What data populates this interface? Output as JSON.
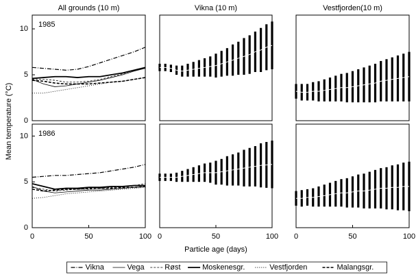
{
  "chart_data": [
    {
      "type": "line",
      "title": "All grounds (10 m)",
      "annotation": "1985",
      "xlim": [
        0,
        100
      ],
      "ylim": [
        0,
        11.5
      ],
      "yticks": [
        0,
        5,
        10
      ],
      "x": [
        0,
        10,
        20,
        30,
        40,
        50,
        60,
        70,
        80,
        90,
        100
      ],
      "series": [
        {
          "name": "Vikna",
          "color": "#000000",
          "style": "dashdot",
          "width": 1.2,
          "values": [
            5.8,
            5.7,
            5.6,
            5.5,
            5.6,
            5.9,
            6.3,
            6.7,
            7.1,
            7.5,
            8.0
          ]
        },
        {
          "name": "Vega",
          "color": "#000000",
          "style": "solid",
          "width": 0.8,
          "values": [
            4.5,
            4.0,
            3.7,
            3.8,
            4.0,
            4.2,
            4.4,
            4.7,
            5.0,
            5.4,
            5.7
          ]
        },
        {
          "name": "Røst",
          "color": "#000000",
          "style": "dashed",
          "width": 0.8,
          "values": [
            4.5,
            4.5,
            4.4,
            4.2,
            4.2,
            4.3,
            4.5,
            4.8,
            5.1,
            5.5,
            5.8
          ]
        },
        {
          "name": "Moskenesgr.",
          "color": "#000000",
          "style": "solid",
          "width": 1.8,
          "values": [
            4.6,
            4.7,
            4.8,
            4.8,
            4.7,
            4.8,
            4.8,
            5.0,
            5.2,
            5.5,
            5.8
          ]
        },
        {
          "name": "Vestfjorden",
          "color": "#000000",
          "style": "dotted",
          "width": 0.9,
          "values": [
            3.0,
            3.0,
            3.2,
            3.4,
            3.6,
            3.8,
            4.0,
            4.2,
            4.3,
            4.5,
            4.7
          ]
        },
        {
          "name": "Malangsgr.",
          "color": "#000000",
          "style": "longdash",
          "width": 1.6,
          "values": [
            4.4,
            4.3,
            4.1,
            4.0,
            4.0,
            4.0,
            4.1,
            4.2,
            4.3,
            4.5,
            4.7
          ]
        }
      ]
    },
    {
      "type": "errorbar",
      "title": "Vikna (10 m)",
      "xlim": [
        0,
        100
      ],
      "ylim": [
        0,
        11.5
      ],
      "x": [
        0,
        5,
        10,
        15,
        20,
        25,
        30,
        35,
        40,
        45,
        50,
        55,
        60,
        65,
        70,
        75,
        80,
        85,
        90,
        95,
        100
      ],
      "series": [
        {
          "color": "#000000",
          "values": [
            5.8,
            5.8,
            5.7,
            5.5,
            5.4,
            5.5,
            5.6,
            5.7,
            5.8,
            5.9,
            6.0,
            6.2,
            6.4,
            6.6,
            6.8,
            7.0,
            7.2,
            7.5,
            7.7,
            8.0,
            8.2
          ],
          "errors": [
            0.4,
            0.4,
            0.4,
            0.5,
            0.6,
            0.7,
            0.8,
            0.9,
            1.0,
            1.1,
            1.3,
            1.4,
            1.5,
            1.7,
            1.8,
            2.0,
            2.1,
            2.2,
            2.4,
            2.5,
            2.6
          ]
        }
      ]
    },
    {
      "type": "errorbar",
      "title": "Vestfjorden(10 m)",
      "xlim": [
        0,
        100
      ],
      "ylim": [
        0,
        11.5
      ],
      "x": [
        0,
        5,
        10,
        15,
        20,
        25,
        30,
        35,
        40,
        45,
        50,
        55,
        60,
        65,
        70,
        75,
        80,
        85,
        90,
        95,
        100
      ],
      "series": [
        {
          "color": "#000000",
          "values": [
            3.2,
            3.1,
            3.1,
            3.2,
            3.2,
            3.3,
            3.4,
            3.5,
            3.6,
            3.6,
            3.7,
            3.8,
            3.9,
            4.0,
            4.1,
            4.3,
            4.4,
            4.5,
            4.6,
            4.7,
            4.8
          ],
          "errors": [
            0.8,
            0.9,
            0.9,
            1.0,
            1.1,
            1.2,
            1.3,
            1.4,
            1.5,
            1.6,
            1.7,
            1.8,
            1.9,
            2.0,
            2.1,
            2.2,
            2.3,
            2.4,
            2.5,
            2.6,
            2.7
          ]
        }
      ]
    },
    {
      "type": "line",
      "annotation": "1986",
      "y_label": "Mean temperature (°C)",
      "xlim": [
        0,
        100
      ],
      "ylim": [
        0,
        11.3
      ],
      "yticks": [
        0,
        5,
        10
      ],
      "xticks": [
        0,
        50,
        100
      ],
      "x": [
        0,
        10,
        20,
        30,
        40,
        50,
        60,
        70,
        80,
        90,
        100
      ],
      "series": [
        {
          "name": "Vikna",
          "color": "#000000",
          "style": "dashdot",
          "width": 1.2,
          "values": [
            5.5,
            5.6,
            5.7,
            5.7,
            5.8,
            5.9,
            6.0,
            6.2,
            6.4,
            6.6,
            6.9
          ]
        },
        {
          "name": "Vega",
          "color": "#000000",
          "style": "solid",
          "width": 0.8,
          "values": [
            4.5,
            4.0,
            3.8,
            3.9,
            4.0,
            4.1,
            4.1,
            4.2,
            4.3,
            4.4,
            4.5
          ]
        },
        {
          "name": "Røst",
          "color": "#000000",
          "style": "dashed",
          "width": 0.8,
          "values": [
            4.4,
            4.2,
            4.0,
            4.1,
            4.2,
            4.2,
            4.3,
            4.4,
            4.5,
            4.6,
            4.8
          ]
        },
        {
          "name": "Moskenesgr.",
          "color": "#000000",
          "style": "solid",
          "width": 1.8,
          "values": [
            4.8,
            4.5,
            4.2,
            4.3,
            4.3,
            4.4,
            4.4,
            4.5,
            4.5,
            4.6,
            4.6
          ]
        },
        {
          "name": "Vestfjorden",
          "color": "#000000",
          "style": "dotted",
          "width": 0.9,
          "values": [
            3.2,
            3.3,
            3.5,
            3.7,
            3.8,
            3.9,
            4.0,
            4.1,
            4.2,
            4.3,
            4.4
          ]
        },
        {
          "name": "Malangsgr.",
          "color": "#000000",
          "style": "longdash",
          "width": 1.6,
          "values": [
            4.2,
            4.0,
            4.1,
            4.2,
            4.2,
            4.3,
            4.3,
            4.3,
            4.4,
            4.4,
            4.5
          ]
        }
      ]
    },
    {
      "type": "errorbar",
      "x_label": "Particle age (days)",
      "xlim": [
        0,
        100
      ],
      "ylim": [
        0,
        11.3
      ],
      "xticks": [
        0,
        50,
        100
      ],
      "x": [
        0,
        5,
        10,
        15,
        20,
        25,
        30,
        35,
        40,
        45,
        50,
        55,
        60,
        65,
        70,
        75,
        80,
        85,
        90,
        95,
        100
      ],
      "series": [
        {
          "color": "#000000",
          "values": [
            5.5,
            5.5,
            5.5,
            5.5,
            5.6,
            5.7,
            5.8,
            5.9,
            6.0,
            6.0,
            6.0,
            6.1,
            6.2,
            6.3,
            6.4,
            6.5,
            6.6,
            6.7,
            6.8,
            6.85,
            6.9
          ],
          "errors": [
            0.4,
            0.4,
            0.4,
            0.5,
            0.6,
            0.7,
            0.8,
            0.9,
            1.0,
            1.1,
            1.3,
            1.4,
            1.6,
            1.7,
            1.8,
            2.0,
            2.1,
            2.2,
            2.4,
            2.5,
            2.6
          ]
        }
      ]
    },
    {
      "type": "errorbar",
      "xlim": [
        0,
        100
      ],
      "ylim": [
        0,
        11.3
      ],
      "xticks": [
        0,
        50,
        100
      ],
      "x": [
        0,
        5,
        10,
        15,
        20,
        25,
        30,
        35,
        40,
        45,
        50,
        55,
        60,
        65,
        70,
        75,
        80,
        85,
        90,
        95,
        100
      ],
      "series": [
        {
          "color": "#000000",
          "values": [
            3.2,
            3.2,
            3.3,
            3.3,
            3.4,
            3.5,
            3.6,
            3.7,
            3.8,
            3.8,
            3.9,
            4.0,
            4.0,
            4.1,
            4.2,
            4.3,
            4.3,
            4.4,
            4.4,
            4.5,
            4.5
          ],
          "errors": [
            0.8,
            0.9,
            0.9,
            1.0,
            1.1,
            1.2,
            1.3,
            1.4,
            1.5,
            1.6,
            1.7,
            1.8,
            1.9,
            2.0,
            2.1,
            2.2,
            2.3,
            2.4,
            2.5,
            2.6,
            2.7
          ]
        }
      ]
    }
  ]
}
